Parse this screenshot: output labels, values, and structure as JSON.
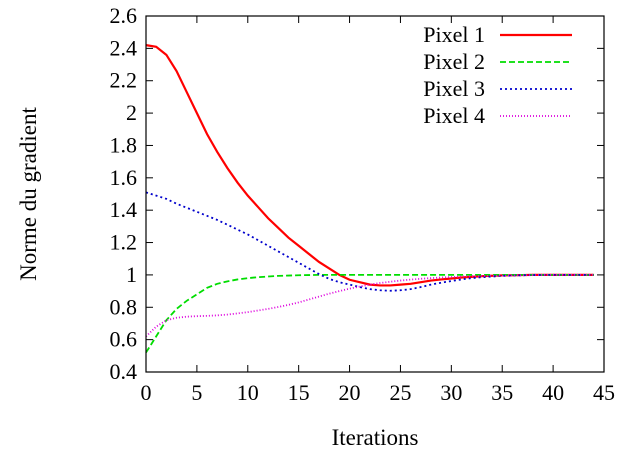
{
  "chart_data": {
    "type": "line",
    "xlabel": "Iterations",
    "ylabel": "Norme du gradient",
    "xlim": [
      0,
      45
    ],
    "ylim": [
      0.4,
      2.6
    ],
    "xticks": [
      "0",
      "5",
      "10",
      "15",
      "20",
      "25",
      "30",
      "35",
      "40",
      "45"
    ],
    "yticks": [
      "0.4",
      "0.6",
      "0.8",
      "1",
      "1.2",
      "1.4",
      "1.6",
      "1.8",
      "2",
      "2.2",
      "2.4",
      "2.6"
    ],
    "grid": false,
    "legend_position": "top-right",
    "x": [
      0,
      1,
      2,
      3,
      4,
      5,
      6,
      7,
      8,
      9,
      10,
      11,
      12,
      13,
      14,
      15,
      16,
      17,
      18,
      19,
      20,
      21,
      22,
      23,
      24,
      25,
      26,
      27,
      28,
      29,
      30,
      31,
      32,
      33,
      34,
      35,
      36,
      37,
      38,
      39,
      40,
      41,
      42,
      43,
      44
    ],
    "series": [
      {
        "name": "Pixel 1",
        "color": "#ff0000",
        "dash": "solid",
        "values": [
          2.42,
          2.41,
          2.36,
          2.26,
          2.13,
          2.0,
          1.87,
          1.76,
          1.66,
          1.57,
          1.49,
          1.42,
          1.35,
          1.29,
          1.23,
          1.18,
          1.13,
          1.08,
          1.04,
          1.0,
          0.97,
          0.955,
          0.94,
          0.935,
          0.935,
          0.94,
          0.945,
          0.955,
          0.965,
          0.972,
          0.978,
          0.984,
          0.988,
          0.992,
          0.995,
          0.997,
          0.998,
          0.999,
          1.0,
          1.0,
          1.0,
          1.0,
          1.0,
          1.0,
          1.0
        ]
      },
      {
        "name": "Pixel 2",
        "color": "#00dd00",
        "dash": "6,3",
        "values": [
          0.52,
          0.62,
          0.72,
          0.79,
          0.84,
          0.88,
          0.92,
          0.945,
          0.96,
          0.972,
          0.98,
          0.986,
          0.99,
          0.994,
          0.996,
          0.998,
          0.999,
          1.0,
          1.0,
          1.0,
          1.0,
          1.0,
          1.0,
          1.0,
          1.0,
          1.0,
          1.0,
          1.0,
          1.0,
          1.0,
          1.0,
          1.0,
          1.0,
          1.0,
          1.0,
          1.0,
          1.0,
          1.0,
          1.0,
          1.0,
          1.0,
          1.0,
          1.0,
          1.0,
          1.0
        ]
      },
      {
        "name": "Pixel 3",
        "color": "#0000cc",
        "dash": "2,3",
        "values": [
          1.51,
          1.49,
          1.47,
          1.44,
          1.415,
          1.39,
          1.365,
          1.34,
          1.31,
          1.28,
          1.25,
          1.215,
          1.18,
          1.145,
          1.11,
          1.075,
          1.04,
          1.005,
          0.975,
          0.955,
          0.94,
          0.925,
          0.912,
          0.905,
          0.902,
          0.905,
          0.912,
          0.925,
          0.94,
          0.952,
          0.962,
          0.972,
          0.98,
          0.986,
          0.99,
          0.994,
          0.996,
          0.998,
          0.999,
          1.0,
          1.0,
          1.0,
          1.0,
          1.0,
          1.0
        ]
      },
      {
        "name": "Pixel 4",
        "color": "#dd00dd",
        "dash": "1,2",
        "values": [
          0.62,
          0.68,
          0.72,
          0.735,
          0.742,
          0.745,
          0.747,
          0.75,
          0.755,
          0.762,
          0.77,
          0.78,
          0.79,
          0.802,
          0.815,
          0.83,
          0.848,
          0.866,
          0.884,
          0.9,
          0.915,
          0.928,
          0.94,
          0.95,
          0.958,
          0.965,
          0.971,
          0.976,
          0.98,
          0.984,
          0.987,
          0.99,
          0.992,
          0.994,
          0.995,
          0.996,
          0.997,
          0.998,
          0.999,
          1.0,
          1.0,
          1.0,
          1.0,
          1.0,
          1.0
        ]
      }
    ]
  }
}
